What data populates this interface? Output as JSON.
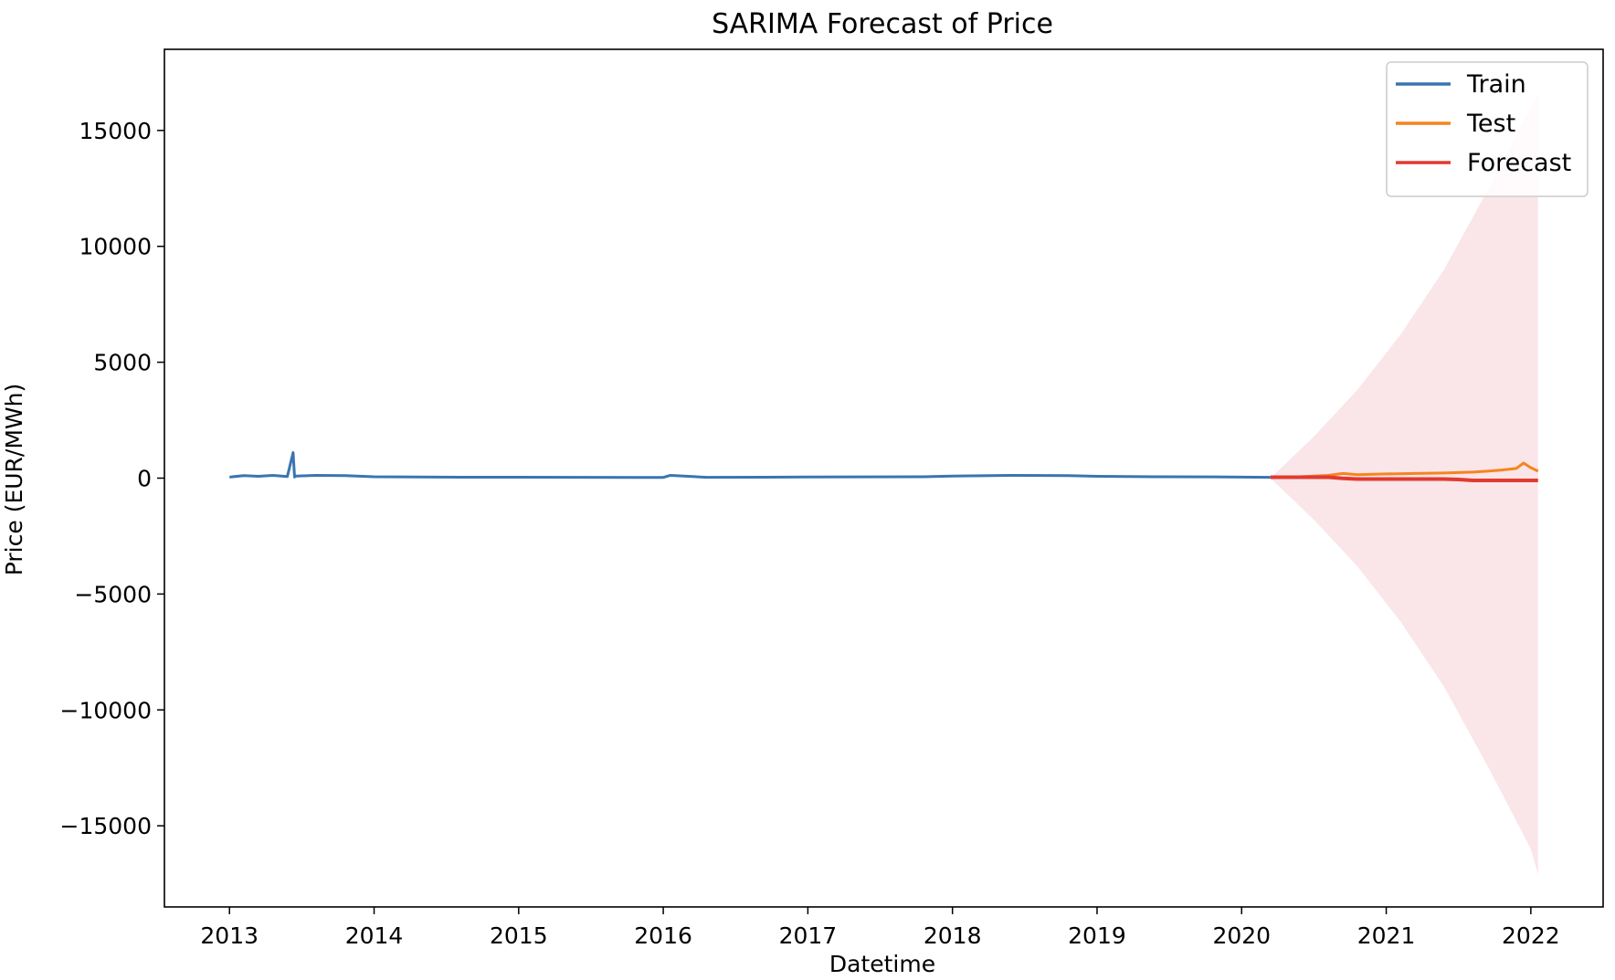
{
  "chart_data": {
    "type": "line",
    "title": "SARIMA Forecast of Price",
    "xlabel": "Datetime",
    "ylabel": "Price (EUR/MWh)",
    "xlim": [
      2012.55,
      2022.5
    ],
    "ylim": [
      -18500,
      18500
    ],
    "x_ticks": [
      {
        "value": 2013,
        "label": "2013"
      },
      {
        "value": 2014,
        "label": "2014"
      },
      {
        "value": 2015,
        "label": "2015"
      },
      {
        "value": 2016,
        "label": "2016"
      },
      {
        "value": 2017,
        "label": "2017"
      },
      {
        "value": 2018,
        "label": "2018"
      },
      {
        "value": 2019,
        "label": "2019"
      },
      {
        "value": 2020,
        "label": "2020"
      },
      {
        "value": 2021,
        "label": "2021"
      },
      {
        "value": 2022,
        "label": "2022"
      }
    ],
    "y_ticks": [
      {
        "value": 15000,
        "label": "15000"
      },
      {
        "value": 10000,
        "label": "10000"
      },
      {
        "value": 5000,
        "label": "5000"
      },
      {
        "value": 0,
        "label": "0"
      },
      {
        "value": -5000,
        "label": "−5000"
      },
      {
        "value": -10000,
        "label": "−10000"
      },
      {
        "value": -15000,
        "label": "−15000"
      }
    ],
    "grid": false,
    "legend_position": "top-right",
    "series": [
      {
        "name": "Train",
        "color": "#3a75b0",
        "x": [
          2013.0,
          2013.1,
          2013.2,
          2013.3,
          2013.4,
          2013.44,
          2013.45,
          2013.46,
          2013.6,
          2013.8,
          2014.0,
          2014.3,
          2014.6,
          2015.0,
          2015.4,
          2015.8,
          2016.0,
          2016.05,
          2016.3,
          2016.7,
          2017.0,
          2017.4,
          2017.8,
          2018.0,
          2018.4,
          2018.8,
          2019.0,
          2019.4,
          2019.8,
          2020.0,
          2020.2
        ],
        "y": [
          45,
          110,
          80,
          120,
          70,
          1100,
          50,
          90,
          120,
          110,
          60,
          50,
          40,
          40,
          35,
          30,
          30,
          120,
          35,
          40,
          50,
          55,
          60,
          90,
          120,
          110,
          80,
          60,
          55,
          45,
          35
        ]
      },
      {
        "name": "Test",
        "color": "#f5841f",
        "x": [
          2020.2,
          2020.4,
          2020.6,
          2020.7,
          2020.8,
          2021.0,
          2021.2,
          2021.4,
          2021.6,
          2021.7,
          2021.8,
          2021.9,
          2021.95,
          2022.0,
          2022.05
        ],
        "y": [
          40,
          60,
          120,
          200,
          150,
          180,
          200,
          220,
          260,
          300,
          350,
          420,
          650,
          450,
          300
        ]
      },
      {
        "name": "Forecast",
        "color": "#e23a2f",
        "x": [
          2020.2,
          2020.6,
          2020.7,
          2020.8,
          2021.0,
          2021.4,
          2021.5,
          2021.6,
          2022.05
        ],
        "y": [
          40,
          40,
          -10,
          -40,
          -40,
          -40,
          -60,
          -100,
          -100
        ]
      }
    ],
    "confidence_band": {
      "color": "#f5c6cb",
      "x": [
        2020.2,
        2020.5,
        2020.8,
        2021.1,
        2021.4,
        2021.7,
        2022.0,
        2022.05
      ],
      "upper": [
        0,
        1800,
        3800,
        6200,
        9000,
        12400,
        16000,
        16600
      ],
      "lower": [
        0,
        -1800,
        -3800,
        -6200,
        -9000,
        -12400,
        -16000,
        -17100
      ]
    }
  }
}
